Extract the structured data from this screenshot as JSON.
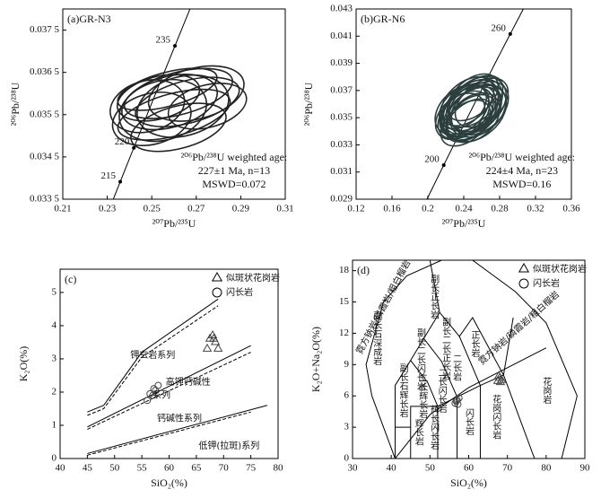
{
  "chart_data": [
    {
      "type": "concordia",
      "title": "(a)GR-N3",
      "xlabel": "²⁰⁷Pb/²³⁵U",
      "ylabel": "²⁰⁶Pb/²³⁸U",
      "annotations": [
        "²⁰⁶Pb/²³⁸U weighted age:",
        "227±1 Ma, n=13",
        "MSWD=0.072"
      ],
      "xlim": [
        0.21,
        0.31
      ],
      "xticks": [
        0.21,
        0.23,
        0.25,
        0.27,
        0.29,
        0.31
      ],
      "ylim": [
        0.0335,
        0.038
      ],
      "yticks": [
        {
          "value": 0.0335,
          "label": "0.033 5"
        },
        {
          "value": 0.0345,
          "label": "0.034 5"
        },
        {
          "value": 0.0355,
          "label": "0.035 5"
        },
        {
          "value": 0.0365,
          "label": "0.036 5"
        },
        {
          "value": 0.0375,
          "label": "0.037 5"
        }
      ],
      "concordia_ages": [
        215,
        220,
        235
      ],
      "ellipses": {
        "x": [
          0.258,
          0.262,
          0.255,
          0.266,
          0.25,
          0.27,
          0.26,
          0.253,
          0.264,
          0.257,
          0.275,
          0.248,
          0.262
        ],
        "y": [
          0.0358,
          0.036,
          0.0356,
          0.0358,
          0.0354,
          0.036,
          0.0355,
          0.0359,
          0.0357,
          0.0361,
          0.0357,
          0.0357,
          0.0352
        ],
        "x_err": [
          0.022,
          0.025,
          0.02,
          0.024,
          0.018,
          0.022,
          0.026,
          0.019,
          0.021,
          0.023,
          0.018,
          0.017,
          0.022
        ],
        "y_err": [
          0.0006,
          0.0005,
          0.0007,
          0.0005,
          0.0006,
          0.0006,
          0.0005,
          0.0005,
          0.0007,
          0.0004,
          0.0005,
          0.0006,
          0.0005
        ]
      },
      "color": "#222"
    },
    {
      "type": "concordia",
      "title": "(b)GR-N6",
      "xlabel": "²⁰⁷Pb/²³⁵U",
      "ylabel": "²⁰⁶Pb/²³⁸U",
      "annotations": [
        "²⁰⁶Pb/²³⁸U weighted age:",
        "224±4 Ma, n=23",
        "MSWD=0.16"
      ],
      "xlim": [
        0.12,
        0.36
      ],
      "xticks": [
        0.12,
        0.16,
        0.2,
        0.24,
        0.28,
        0.32,
        0.36
      ],
      "ylim": [
        0.029,
        0.043
      ],
      "yticks": [
        0.029,
        0.031,
        0.033,
        0.035,
        0.037,
        0.039,
        0.041,
        0.043
      ],
      "concordia_ages": [
        200,
        260
      ],
      "ellipses": {
        "x": [
          0.245,
          0.25,
          0.24,
          0.255,
          0.248,
          0.238,
          0.252,
          0.246,
          0.258,
          0.243,
          0.25,
          0.236,
          0.254,
          0.248,
          0.242,
          0.26,
          0.247,
          0.251,
          0.239,
          0.256,
          0.244,
          0.249,
          0.253
        ],
        "y": [
          0.0355,
          0.0358,
          0.0352,
          0.036,
          0.035,
          0.0356,
          0.0362,
          0.0348,
          0.0357,
          0.0354,
          0.0365,
          0.0351,
          0.0353,
          0.0359,
          0.0346,
          0.0361,
          0.0356,
          0.035,
          0.0358,
          0.0355,
          0.0362,
          0.0353,
          0.0357
        ],
        "x_err": [
          0.035,
          0.038,
          0.033,
          0.036,
          0.032,
          0.034,
          0.037,
          0.03,
          0.036,
          0.034,
          0.033,
          0.031,
          0.038,
          0.035,
          0.032,
          0.034,
          0.036,
          0.033,
          0.03,
          0.035,
          0.034,
          0.037,
          0.032
        ],
        "y_err": [
          0.0015,
          0.0016,
          0.0014,
          0.0017,
          0.0013,
          0.0015,
          0.0014,
          0.0012,
          0.0016,
          0.0015,
          0.0013,
          0.0014,
          0.0017,
          0.0015,
          0.0013,
          0.0014,
          0.0016,
          0.0015,
          0.0013,
          0.0016,
          0.0014,
          0.0015,
          0.0016
        ]
      },
      "color": "#2c3e3e"
    },
    {
      "type": "geochem",
      "title": "(c)",
      "xlabel": "SiO₂(%)",
      "ylabel": "K₂O(%)",
      "xlim": [
        40,
        80
      ],
      "xticks": [
        40,
        45,
        50,
        55,
        60,
        65,
        70,
        75,
        80
      ],
      "ylim": [
        0,
        5.7
      ],
      "yticks": [
        0,
        1,
        2,
        3,
        4,
        5
      ],
      "series": [
        {
          "name": "似斑状花岗岩",
          "marker": "triangle",
          "x": [
            67.5,
            68,
            68.5,
            67,
            69,
            68.2
          ],
          "y": [
            3.6,
            3.7,
            3.5,
            3.3,
            3.3,
            3.6
          ]
        },
        {
          "name": "闪长岩",
          "marker": "circle",
          "x": [
            56,
            57,
            57.5,
            58,
            56.5,
            57.2
          ],
          "y": [
            1.75,
            1.9,
            2.05,
            2.2,
            1.95,
            2.1
          ]
        }
      ],
      "boundaries": [
        {
          "x": [
            45,
            48,
            55,
            69
          ],
          "y": [
            1.4,
            1.6,
            3.2,
            4.8
          ],
          "dashed": false
        },
        {
          "x": [
            45,
            48,
            55,
            69
          ],
          "y": [
            1.3,
            1.5,
            3.05,
            4.6
          ],
          "dashed": true
        },
        {
          "x": [
            45,
            75
          ],
          "y": [
            0.95,
            3.4
          ],
          "dashed": false
        },
        {
          "x": [
            45,
            75
          ],
          "y": [
            0.88,
            3.2
          ],
          "dashed": true
        },
        {
          "x": [
            45,
            78
          ],
          "y": [
            0.15,
            1.6
          ],
          "dashed": false
        },
        {
          "x": [
            45,
            75
          ],
          "y": [
            0.1,
            1.4
          ],
          "dashed": true
        }
      ],
      "field_labels": [
        "钾玄岩系列",
        "高钾钙碱性",
        "系列",
        "钙碱性系列",
        "低钾(拉斑)系列"
      ]
    },
    {
      "type": "geochem",
      "title": "(d)",
      "xlabel": "SiO₂(%)",
      "ylabel": "K₂O+Na₂O(%)",
      "xlim": [
        30,
        90
      ],
      "xticks": [
        30,
        40,
        50,
        60,
        70,
        80,
        90
      ],
      "ylim": [
        0,
        19
      ],
      "yticks": [
        0,
        3,
        6,
        9,
        12,
        15,
        18
      ],
      "series": [
        {
          "name": "似斑状花岗岩",
          "marker": "triangle",
          "x": [
            67.5,
            68,
            68.5,
            67.8,
            68.2
          ],
          "y": [
            7.4,
            7.7,
            7.5,
            7.9,
            7.3
          ]
        },
        {
          "name": "闪长岩",
          "marker": "circle",
          "x": [
            56.5,
            57,
            57.5,
            56.8,
            57.2
          ],
          "y": [
            5.3,
            5.6,
            5.8,
            5.5,
            5.2
          ]
        }
      ],
      "boundaries": [
        {
          "x": [
            41,
            35,
            33.5,
            38,
            44,
            53,
            61,
            72,
            80,
            88,
            84
          ],
          "y": [
            0,
            6,
            9,
            15,
            17.5,
            19,
            19,
            16,
            13,
            6,
            0
          ],
          "dashed": false
        },
        {
          "x": [
            41,
            41,
            45,
            48.4,
            52.5
          ],
          "y": [
            0,
            7,
            9.4,
            11.5,
            14
          ],
          "dashed": false
        },
        {
          "x": [
            41,
            45,
            45
          ],
          "y": [
            3,
            3,
            0
          ],
          "dashed": false
        },
        {
          "x": [
            45,
            45,
            52,
            57,
            63,
            69
          ],
          "y": [
            3,
            5,
            5,
            5.9,
            7,
            8
          ],
          "dashed": false
        },
        {
          "x": [
            52,
            52
          ],
          "y": [
            0,
            5
          ],
          "dashed": false
        },
        {
          "x": [
            57,
            57
          ],
          "y": [
            0,
            5.9
          ],
          "dashed": false
        },
        {
          "x": [
            63,
            63
          ],
          "y": [
            0,
            7
          ],
          "dashed": false
        },
        {
          "x": [
            69,
            77
          ],
          "y": [
            8,
            0
          ],
          "dashed": false
        },
        {
          "x": [
            52,
            49.4,
            45
          ],
          "y": [
            5,
            7.3,
            9.4
          ],
          "dashed": false
        },
        {
          "x": [
            57,
            53,
            48.4
          ],
          "y": [
            5.9,
            9.3,
            11.5
          ],
          "dashed": false
        },
        {
          "x": [
            63,
            57.6,
            52.5
          ],
          "y": [
            7,
            11.7,
            14
          ],
          "dashed": false
        },
        {
          "x": [
            52.5,
            50
          ],
          "y": [
            14,
            19
          ],
          "dashed": false
        },
        {
          "x": [
            57.6,
            61,
            69,
            71.5
          ],
          "y": [
            11.7,
            13.5,
            8,
            13.5
          ],
          "dashed": false
        },
        {
          "x": [
            41,
            50,
            60,
            70,
            80
          ],
          "y": [
            0,
            4.2,
            6.8,
            8.7,
            10.6
          ],
          "dashed": false
        }
      ],
      "field_labels": [
        "霓方钠岩/磷霞岩/粗白榴岩",
        "霓方钠岩/磷霞岩/粗白榴岩",
        "副长石深成岩",
        "副长正长岩",
        "副长二长正长岩",
        "副长二长闪长岩",
        "副长石辉长岩",
        "正长岩",
        "二长岩",
        "二长闪长岩",
        "二长辉长岩",
        "辉长岩",
        "辉长闪长岩",
        "闪长岩",
        "花岗闪长岩",
        "花岗岩"
      ]
    }
  ]
}
